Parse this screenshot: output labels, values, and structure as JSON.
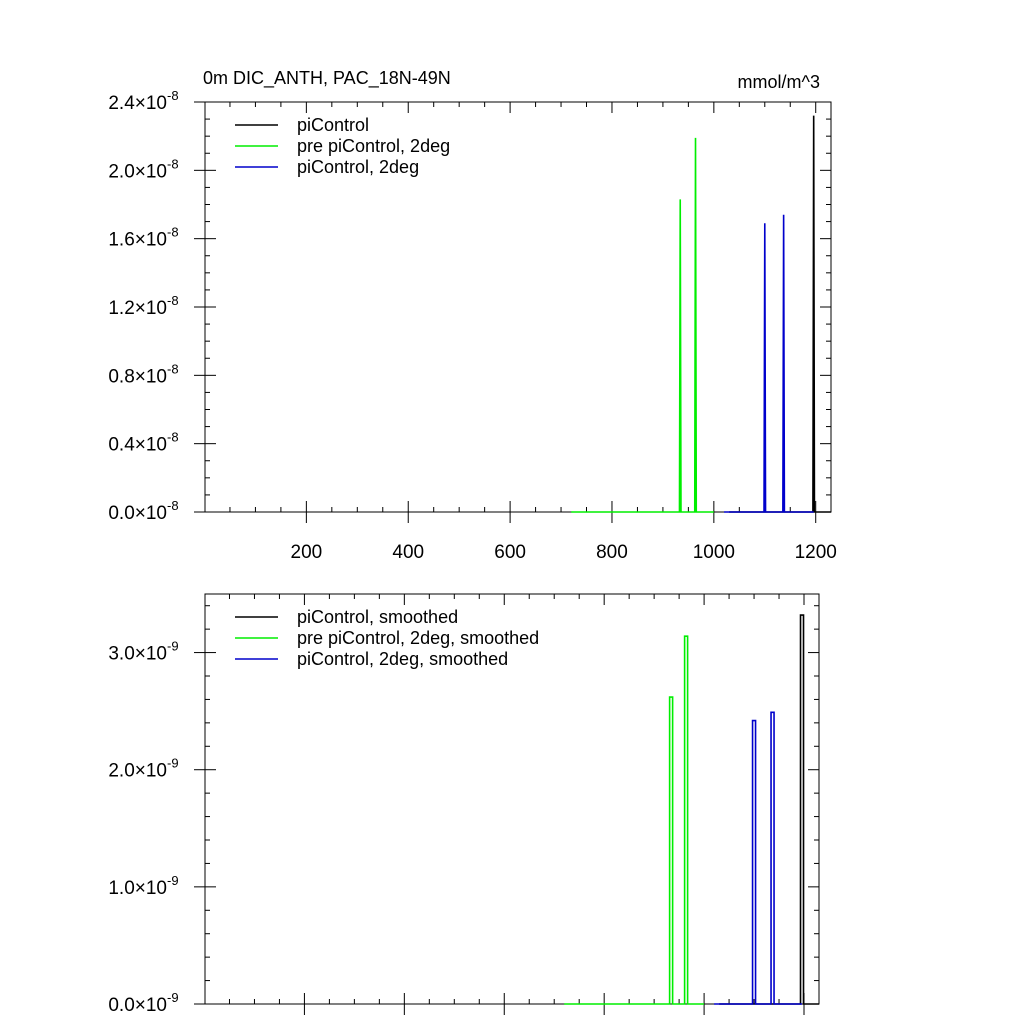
{
  "chart_data": [
    {
      "type": "line",
      "title": "0m DIC_ANTH, PAC_18N-49N",
      "units": "mmol/m^3",
      "xlim": [
        1,
        1230
      ],
      "ylim": [
        0,
        2.4e-08
      ],
      "x_ticks": [
        200,
        400,
        600,
        800,
        1000,
        1200
      ],
      "x_tick_labels": [
        "200",
        "400",
        "600",
        "800",
        "1000",
        "1200"
      ],
      "y_ticks": [
        0,
        4e-09,
        8e-09,
        1.2e-08,
        1.6e-08,
        2e-08,
        2.4e-08
      ],
      "y_tick_labels": [
        {
          "mantissa": "0.0",
          "times": "×10",
          "exp": "-8"
        },
        {
          "mantissa": "0.4",
          "times": "×10",
          "exp": "-8"
        },
        {
          "mantissa": "0.8",
          "times": "×10",
          "exp": "-8"
        },
        {
          "mantissa": "1.2",
          "times": "×10",
          "exp": "-8"
        },
        {
          "mantissa": "1.6",
          "times": "×10",
          "exp": "-8"
        },
        {
          "mantissa": "2.0",
          "times": "×10",
          "exp": "-8"
        },
        {
          "mantissa": "2.4",
          "times": "×10",
          "exp": "-8"
        }
      ],
      "legend_position": "top-left",
      "series": [
        {
          "name": "piControl",
          "color": "#000000",
          "x_start": 1030,
          "x_end": 1230,
          "spikes": [
            {
              "x": 1196,
              "y": 2.32e-08
            }
          ]
        },
        {
          "name": "pre piControl, 2deg",
          "color": "#00ee00",
          "x_start": 720,
          "x_end": 1000,
          "spikes": [
            {
              "x": 934,
              "y": 1.83e-08
            },
            {
              "x": 964,
              "y": 2.19e-08
            }
          ]
        },
        {
          "name": "piControl, 2deg",
          "color": "#0000cc",
          "x_start": 1020,
          "x_end": 1196,
          "spikes": [
            {
              "x": 1100,
              "y": 1.69e-08
            },
            {
              "x": 1137,
              "y": 1.74e-08
            }
          ]
        }
      ]
    },
    {
      "type": "line",
      "title": "",
      "xlim": [
        1,
        1230
      ],
      "ylim": [
        0,
        3.5e-09
      ],
      "x_ticks": [
        200,
        400,
        600,
        800,
        1000,
        1200
      ],
      "x_tick_labels": [],
      "y_ticks": [
        0,
        1e-09,
        2e-09,
        3e-09
      ],
      "y_tick_labels": [
        {
          "mantissa": "0.0",
          "times": "×10",
          "exp": "-9"
        },
        {
          "mantissa": "1.0",
          "times": "×10",
          "exp": "-9"
        },
        {
          "mantissa": "2.0",
          "times": "×10",
          "exp": "-9"
        },
        {
          "mantissa": "3.0",
          "times": "×10",
          "exp": "-9"
        }
      ],
      "legend_position": "top-left",
      "series": [
        {
          "name": "piControl, smoothed",
          "color": "#000000",
          "x_start": 1030,
          "x_end": 1230,
          "boxes": [
            {
              "x0": 1193,
              "x1": 1199,
              "y": 3.32e-09
            }
          ]
        },
        {
          "name": "pre piControl, 2deg, smoothed",
          "color": "#00ee00",
          "x_start": 720,
          "x_end": 1000,
          "boxes": [
            {
              "x0": 931,
              "x1": 937,
              "y": 2.62e-09
            },
            {
              "x0": 961,
              "x1": 967,
              "y": 3.14e-09
            }
          ]
        },
        {
          "name": "piControl, 2deg, smoothed",
          "color": "#0000cc",
          "x_start": 1020,
          "x_end": 1196,
          "boxes": [
            {
              "x0": 1097,
              "x1": 1103,
              "y": 2.42e-09
            },
            {
              "x0": 1134,
              "x1": 1140,
              "y": 2.49e-09
            }
          ]
        }
      ]
    }
  ]
}
